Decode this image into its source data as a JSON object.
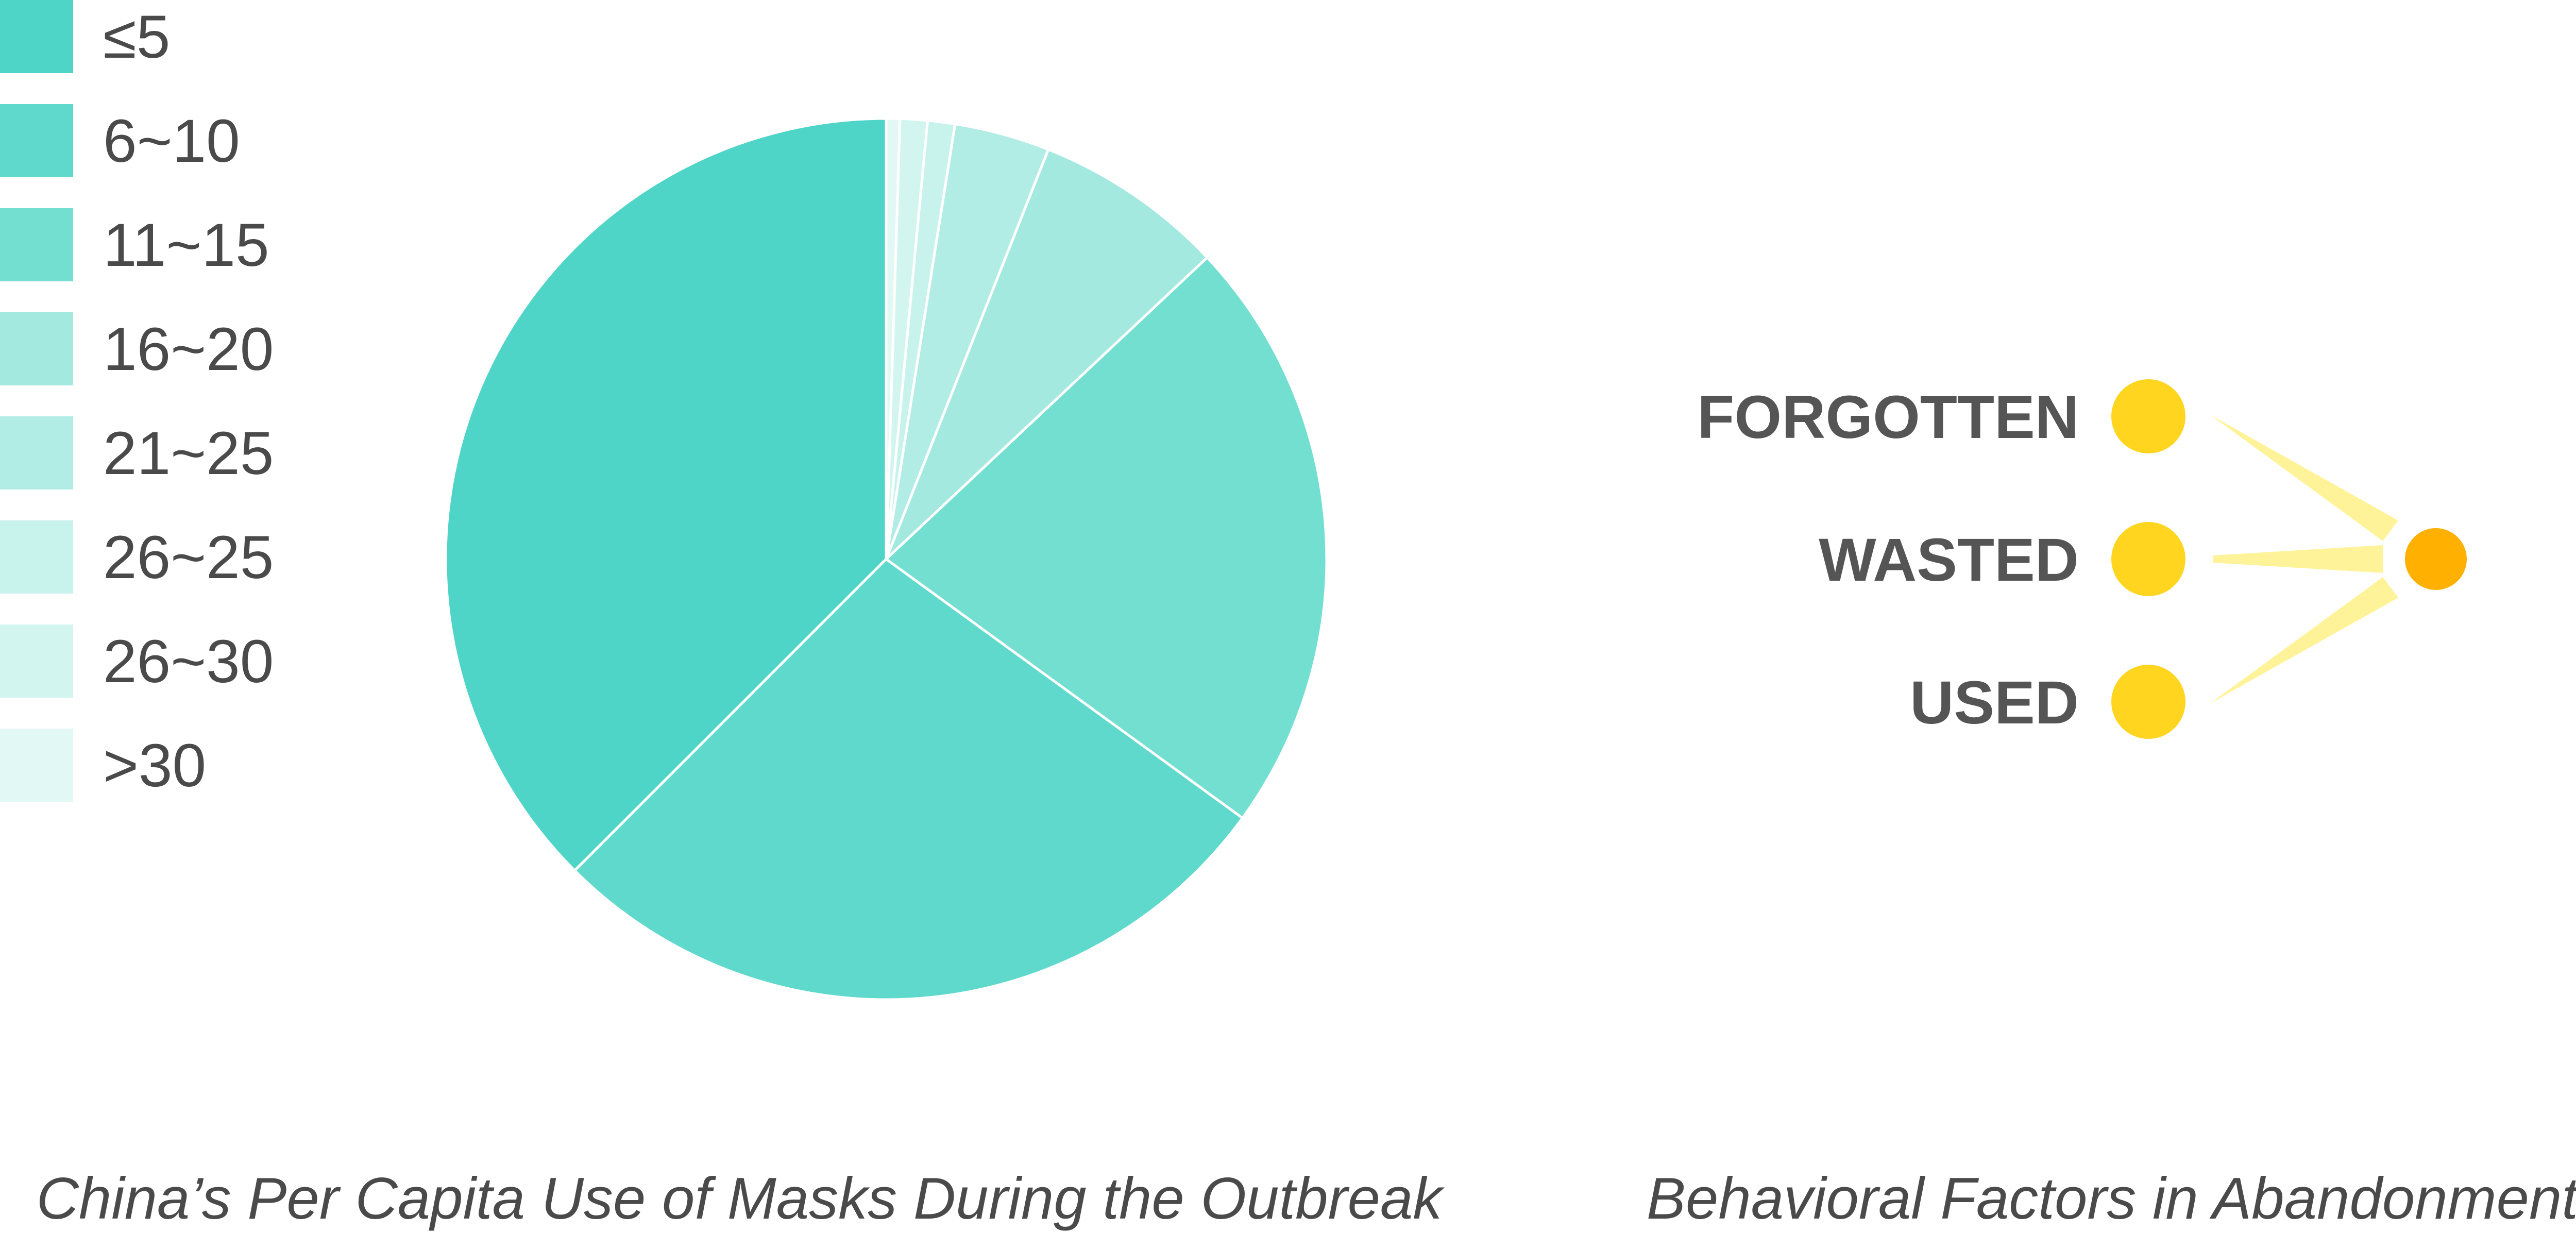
{
  "chart_data": [
    {
      "type": "pie",
      "title": "China’s Per Capita Use of Masks During the Outbreak",
      "legend_position": "left",
      "slices": [
        {
          "label": "≤5",
          "value": 37.5,
          "color": "#4fd5c7"
        },
        {
          "label": "6~10",
          "value": 27.5,
          "color": "#5ed9cb"
        },
        {
          "label": "11~15",
          "value": 22.0,
          "color": "#72dfd1"
        },
        {
          "label": "16~20",
          "value": 7.0,
          "color": "#a3e9e0"
        },
        {
          "label": "21~25",
          "value": 3.5,
          "color": "#b2ede5"
        },
        {
          "label": "26~25",
          "value": 1.0,
          "color": "#c8f2ec"
        },
        {
          "label": "26~30",
          "value": 1.0,
          "color": "#d3f5f0"
        },
        {
          "label": ">30",
          "value": 0.5,
          "color": "#e2f8f5"
        }
      ]
    },
    {
      "type": "diagram",
      "title": "Behavioral Factors in Abandonment",
      "factors": [
        {
          "label": "FORGOTTEN",
          "color": "#ffd51f"
        },
        {
          "label": "WASTED",
          "color": "#ffd51f"
        },
        {
          "label": "USED",
          "color": "#ffd51f"
        }
      ],
      "target_color": "#ffb000",
      "connector_color": "#fff39a"
    }
  ]
}
